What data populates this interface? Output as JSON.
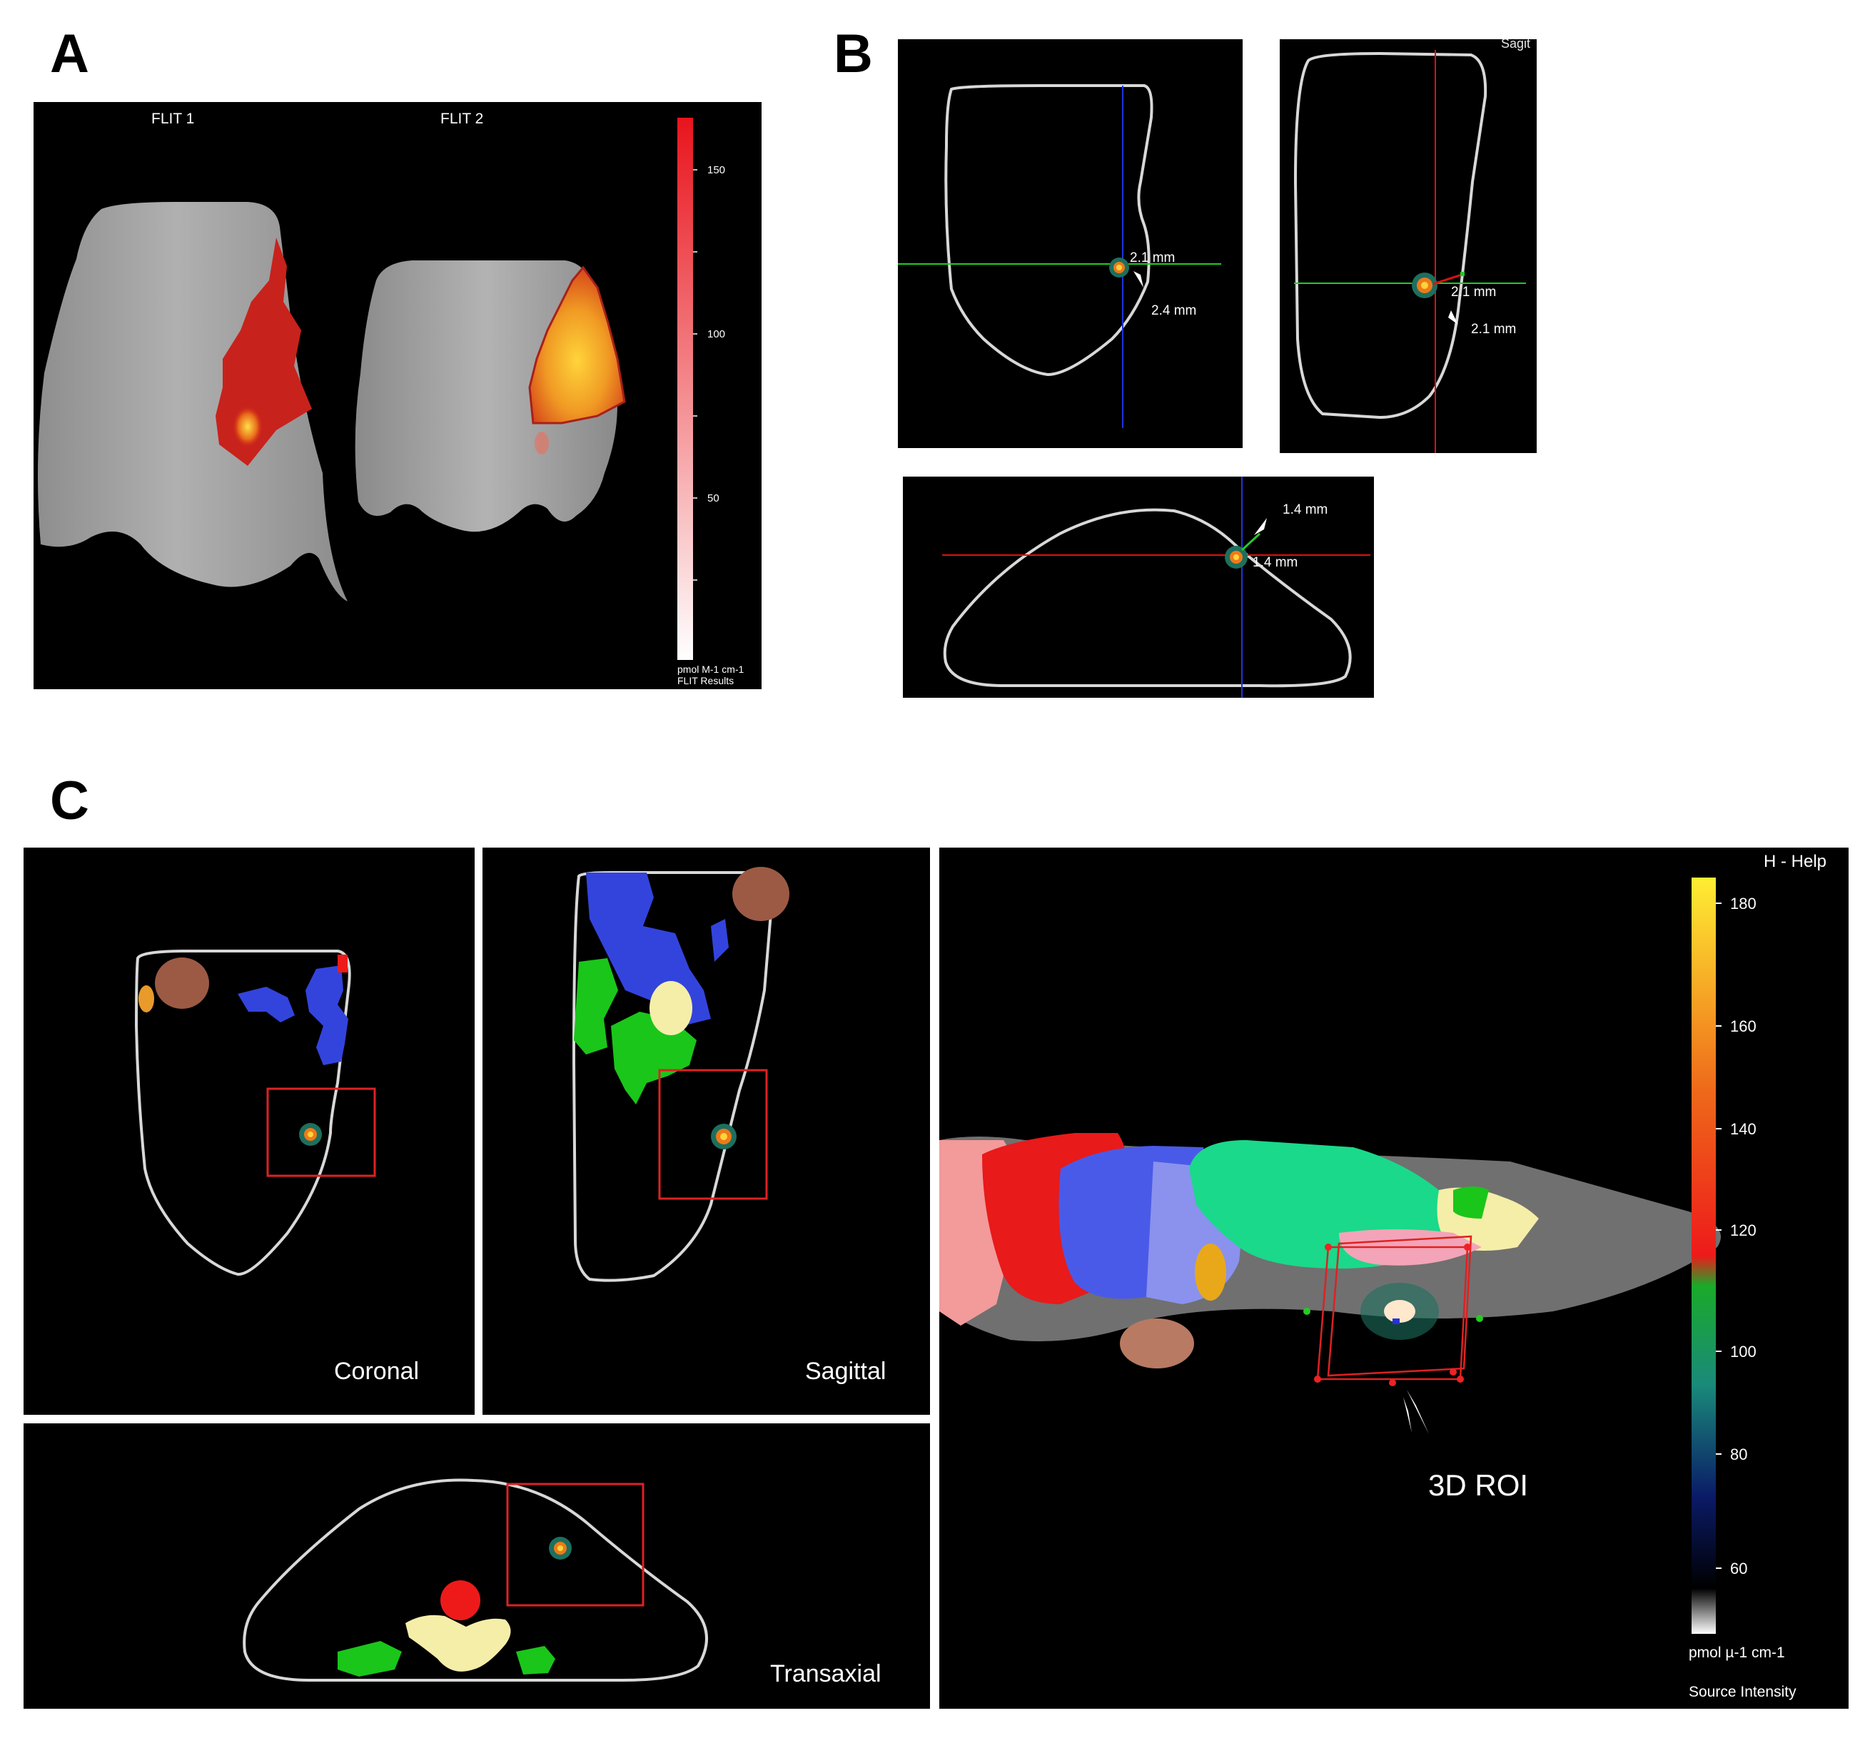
{
  "panels": {
    "a": "A",
    "b": "B",
    "c": "C"
  },
  "panel_a": {
    "label_left": "FLIT 1",
    "label_right": "FLIT 2",
    "colorbar_ticks": [
      "150",
      "100",
      "50"
    ],
    "colorbar_unit": "pmol M-1 cm-1",
    "colorbar_caption": "FLIT Results"
  },
  "panel_b": {
    "coronal_labels": [
      "2.1 mm",
      "2.4 mm"
    ],
    "sagittal_corner": "Sagit",
    "sagittal_labels": [
      "2.1 mm",
      "2.1 mm"
    ],
    "transaxial_labels": [
      "1.4 mm",
      "1.4 mm"
    ]
  },
  "panel_c": {
    "coronal_label": "Coronal",
    "sagittal_label": "Sagittal",
    "transaxial_label": "Transaxial",
    "help_label": "H - Help",
    "roi_label": "3D ROI",
    "colorbar_ticks": [
      "180",
      "160",
      "140",
      "120",
      "100",
      "80",
      "60"
    ],
    "colorbar_unit": "pmol µ-1 cm-1",
    "colorbar_caption": "Source Intensity"
  },
  "colors": {
    "signal_red": "#cc1a1a",
    "signal_yellow": "#ffd23a",
    "outline": "#d8d8d8",
    "crosshair_green": "#22cc22",
    "crosshair_blue": "#2233dd",
    "crosshair_red": "#dd1111",
    "roi_box": "#dd2222"
  }
}
